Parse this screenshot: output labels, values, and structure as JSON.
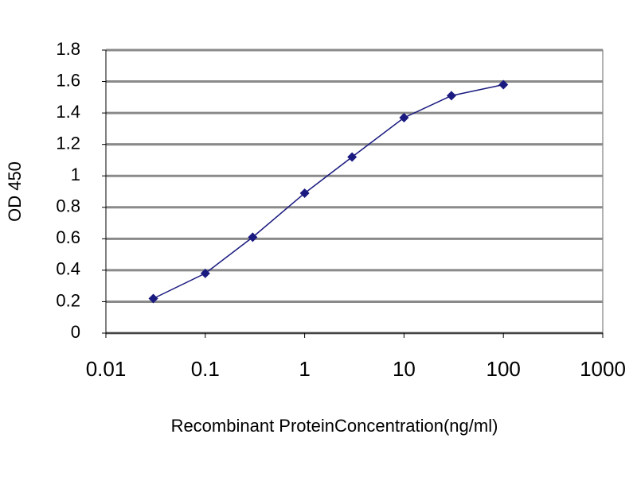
{
  "chart_data": {
    "type": "line",
    "xlabel": "Recombinant ProteinConcentration(ng/ml)",
    "ylabel": "OD 450",
    "xscale": "log",
    "x": [
      0.03,
      0.1,
      0.3,
      1,
      3,
      10,
      30,
      100
    ],
    "series": [
      {
        "color": "#1a1a80",
        "values": [
          0.22,
          0.38,
          0.61,
          0.89,
          1.12,
          1.37,
          1.51,
          1.58
        ]
      }
    ],
    "xlim": [
      0.01,
      1000
    ],
    "xticks": [
      0.01,
      0.1,
      1,
      10,
      100,
      1000
    ],
    "ylim": [
      0,
      1.8
    ],
    "yticks": [
      0,
      0.2,
      0.4,
      0.6,
      0.8,
      1,
      1.2,
      1.4,
      1.6,
      1.8
    ],
    "grid": true
  }
}
